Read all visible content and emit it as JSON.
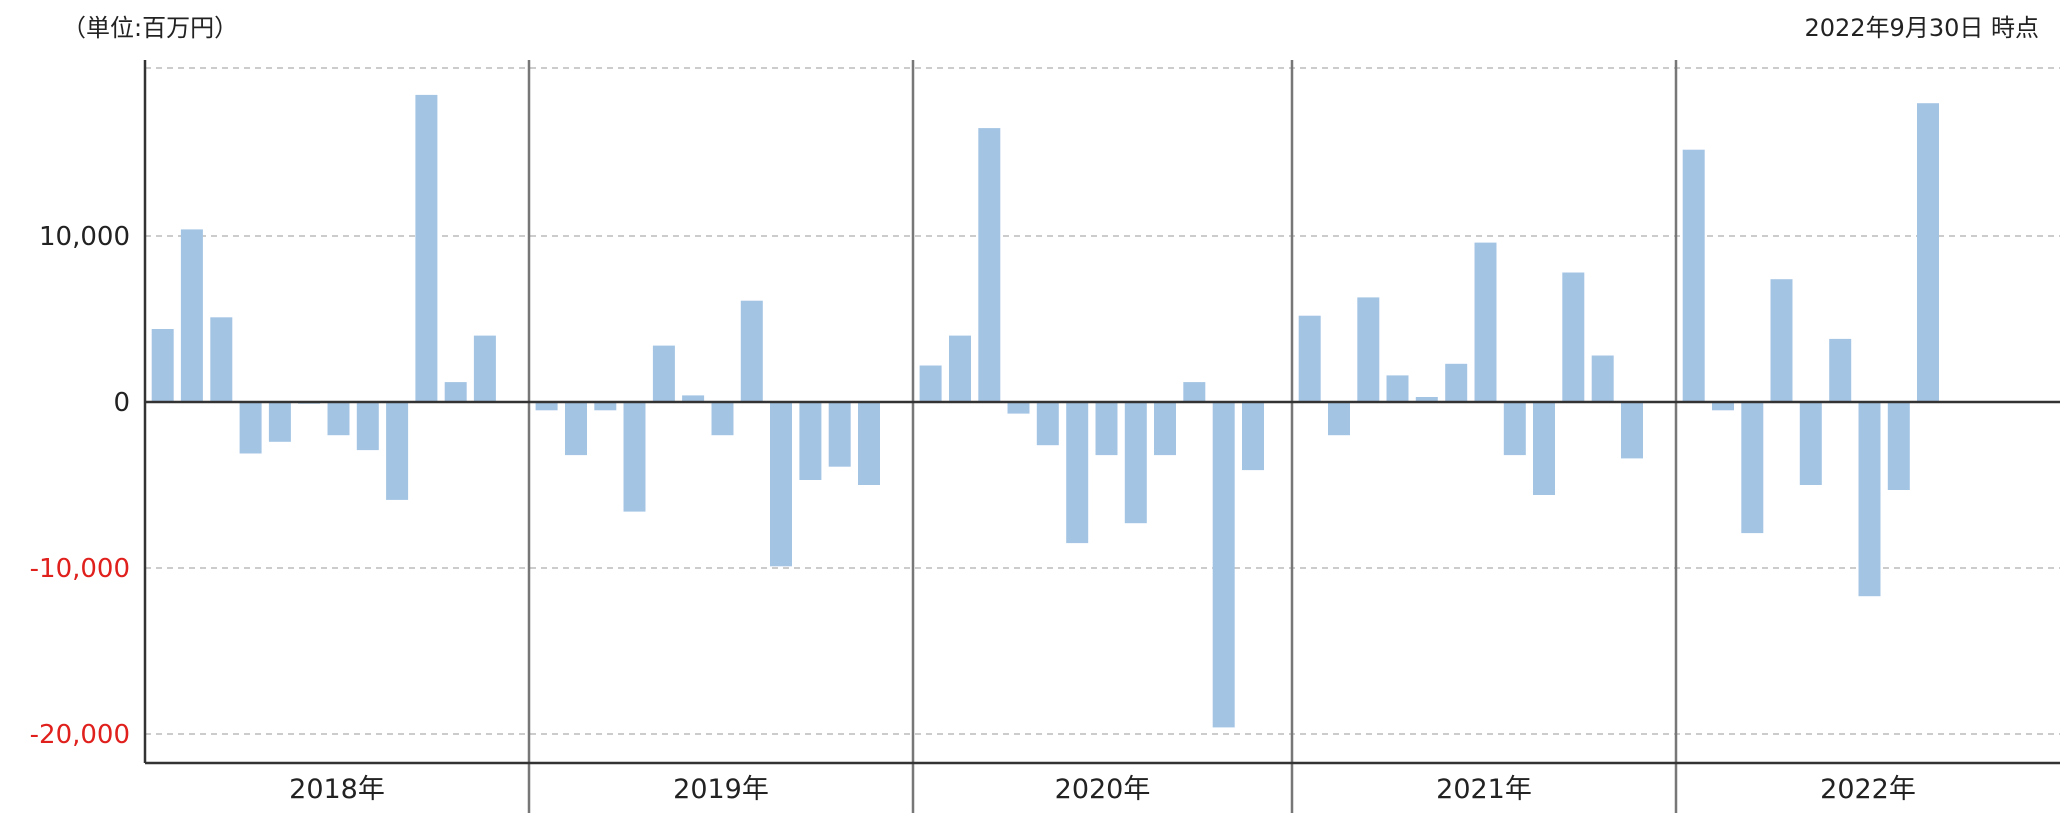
{
  "header": {
    "unit_label": "（単位:百万円）",
    "as_of_label": "2022年9月30日 時点"
  },
  "colors": {
    "bar": "#a4c4e4",
    "axis": "#333333",
    "divider": "#777777",
    "grid": "#bbbbbb",
    "negative_label": "#e0201c",
    "positive_label": "#222222"
  },
  "chart_data": {
    "type": "bar",
    "title": "",
    "xlabel": "",
    "ylabel": "",
    "ylim": [
      -21600,
      20000
    ],
    "grid": true,
    "yticks": [
      {
        "value": 10000,
        "label": "10,000"
      },
      {
        "value": 0,
        "label": "0"
      },
      {
        "value": -10000,
        "label": "-10,000"
      },
      {
        "value": -20000,
        "label": "-20,000"
      }
    ],
    "groups": [
      {
        "label": "2018年",
        "values": [
          4400,
          10400,
          5100,
          -3100,
          -2400,
          -100,
          -2000,
          -2900,
          -5900,
          18500,
          1200,
          4000
        ]
      },
      {
        "label": "2019年",
        "values": [
          -500,
          -3200,
          -500,
          -6600,
          3400,
          400,
          -2000,
          6100,
          -9900,
          -4700,
          -3900,
          -5000
        ]
      },
      {
        "label": "2020年",
        "values": [
          2200,
          4000,
          16500,
          -700,
          -2600,
          -8500,
          -3200,
          -7300,
          -3200,
          1200,
          -19600,
          -4100
        ]
      },
      {
        "label": "2021年",
        "values": [
          5200,
          -2000,
          6300,
          1600,
          300,
          2300,
          9600,
          -3200,
          -5600,
          7800,
          2800,
          -3400
        ]
      },
      {
        "label": "2022年",
        "values": [
          15200,
          -500,
          -7900,
          7400,
          -5000,
          3800,
          -11700,
          -5300,
          18000
        ]
      }
    ]
  }
}
